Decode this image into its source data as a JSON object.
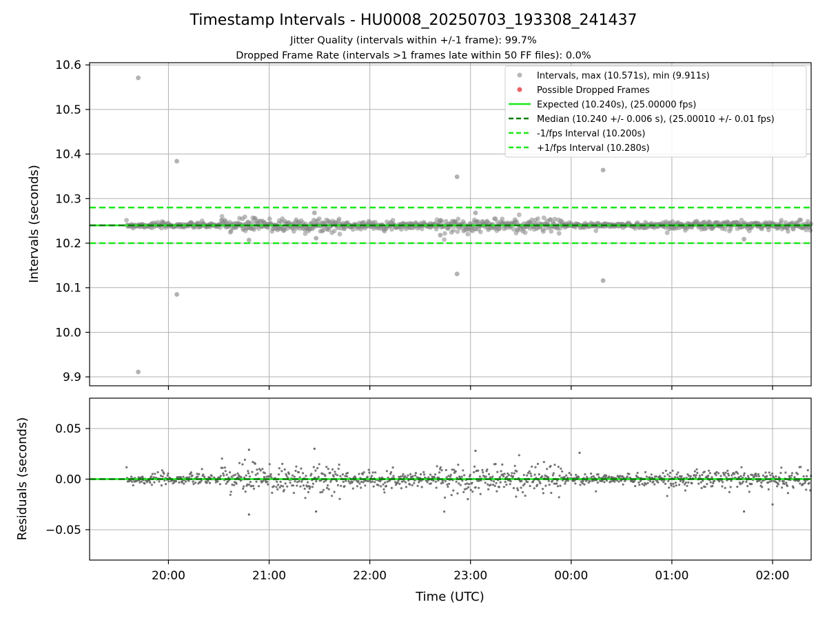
{
  "chart_data": {
    "type": "scatter",
    "title": "Timestamp Intervals - HU0008_20250703_193308_241437",
    "subtitle_lines": [
      "Jitter Quality (intervals within +/-1 frame): 99.7%",
      "Dropped Frame Rate (intervals >1 frames late within 50 FF files): 0.0%"
    ],
    "xlabel": "Time (UTC)",
    "x_axis_type": "time",
    "xlim": [
      "19:13",
      "02:23"
    ],
    "x_ticks": [
      "20:00",
      "21:00",
      "22:00",
      "23:00",
      "00:00",
      "01:00",
      "02:00"
    ],
    "grid": true,
    "legend_position": "top-right",
    "colors": {
      "intervals": "#888888",
      "dropped": "#e8474a",
      "expected": "#18e818",
      "median": "#0a7a0a",
      "interval_bounds": "#18e818",
      "residuals": "#666666",
      "grid": "#b0b0b0"
    },
    "top_panel": {
      "ylabel": "Intervals (seconds)",
      "ylim": [
        9.88,
        10.605
      ],
      "y_ticks": [
        "9.9",
        "10.0",
        "10.1",
        "10.2",
        "10.3",
        "10.4",
        "10.5",
        "10.6"
      ],
      "legend": [
        {
          "label": "Intervals, max (10.571s), min (9.911s)",
          "kind": "marker",
          "color": "#888888"
        },
        {
          "label": "Possible Dropped Frames",
          "kind": "marker",
          "color": "#e8474a"
        },
        {
          "label": "Expected (10.240s), (25.00000 fps)",
          "kind": "solid",
          "color": "#18e818"
        },
        {
          "label": "Median (10.240 +/- 0.006 s), (25.00010 +/- 0.01 fps)",
          "kind": "dashed",
          "color": "#0a7a0a"
        },
        {
          "label": "-1/fps Interval (10.200s)",
          "kind": "dashed",
          "color": "#18e818"
        },
        {
          "label": "+1/fps Interval (10.280s)",
          "kind": "dashed",
          "color": "#18e818"
        }
      ],
      "reference_lines": {
        "expected": 10.24,
        "median": 10.24,
        "lower": 10.2,
        "upper": 10.28
      },
      "series": [
        {
          "name": "Intervals",
          "start": "19:35",
          "end": "02:23",
          "center": 10.24,
          "spread_segments": [
            {
              "from": "19:35",
              "to": "20:30",
              "spread": 0.004
            },
            {
              "from": "20:30",
              "to": "21:45",
              "spread": 0.011
            },
            {
              "from": "21:45",
              "to": "22:40",
              "spread": 0.005
            },
            {
              "from": "22:40",
              "to": "23:55",
              "spread": 0.01
            },
            {
              "from": "23:55",
              "to": "00:55",
              "spread": 0.004
            },
            {
              "from": "00:55",
              "to": "02:23",
              "spread": 0.007
            }
          ],
          "outliers": [
            {
              "x": "19:42",
              "y": 10.571
            },
            {
              "x": "19:42",
              "y": 9.911
            },
            {
              "x": "20:05",
              "y": 10.384
            },
            {
              "x": "20:05",
              "y": 10.085
            },
            {
              "x": "22:52",
              "y": 10.349
            },
            {
              "x": "22:52",
              "y": 10.131
            },
            {
              "x": "00:19",
              "y": 10.364
            },
            {
              "x": "00:19",
              "y": 10.116
            },
            {
              "x": "20:48",
              "y": 10.207
            },
            {
              "x": "21:28",
              "y": 10.211
            },
            {
              "x": "22:42",
              "y": 10.218
            },
            {
              "x": "23:03",
              "y": 10.268
            },
            {
              "x": "01:43",
              "y": 10.209
            },
            {
              "x": "21:27",
              "y": 10.268
            }
          ]
        }
      ]
    },
    "bottom_panel": {
      "ylabel": "Residuals (seconds)",
      "ylim": [
        -0.08,
        0.08
      ],
      "y_ticks": [
        "−0.05",
        "0.00",
        "0.05"
      ],
      "reference_lines": {
        "zero": 0.0
      },
      "series": [
        {
          "name": "Residuals",
          "start": "19:35",
          "end": "02:23",
          "center": 0.0,
          "spread_segments": [
            {
              "from": "19:35",
              "to": "20:30",
              "spread": 0.004
            },
            {
              "from": "20:30",
              "to": "21:45",
              "spread": 0.011
            },
            {
              "from": "21:45",
              "to": "22:40",
              "spread": 0.005
            },
            {
              "from": "22:40",
              "to": "23:55",
              "spread": 0.01
            },
            {
              "from": "23:55",
              "to": "00:55",
              "spread": 0.004
            },
            {
              "from": "00:55",
              "to": "02:23",
              "spread": 0.007
            }
          ],
          "outliers": [
            {
              "x": "20:48",
              "y": -0.035
            },
            {
              "x": "20:48",
              "y": 0.029
            },
            {
              "x": "21:27",
              "y": 0.03
            },
            {
              "x": "21:28",
              "y": -0.032
            },
            {
              "x": "23:03",
              "y": 0.028
            },
            {
              "x": "01:43",
              "y": -0.032
            },
            {
              "x": "00:05",
              "y": 0.026
            },
            {
              "x": "02:00",
              "y": -0.025
            }
          ]
        }
      ]
    }
  }
}
